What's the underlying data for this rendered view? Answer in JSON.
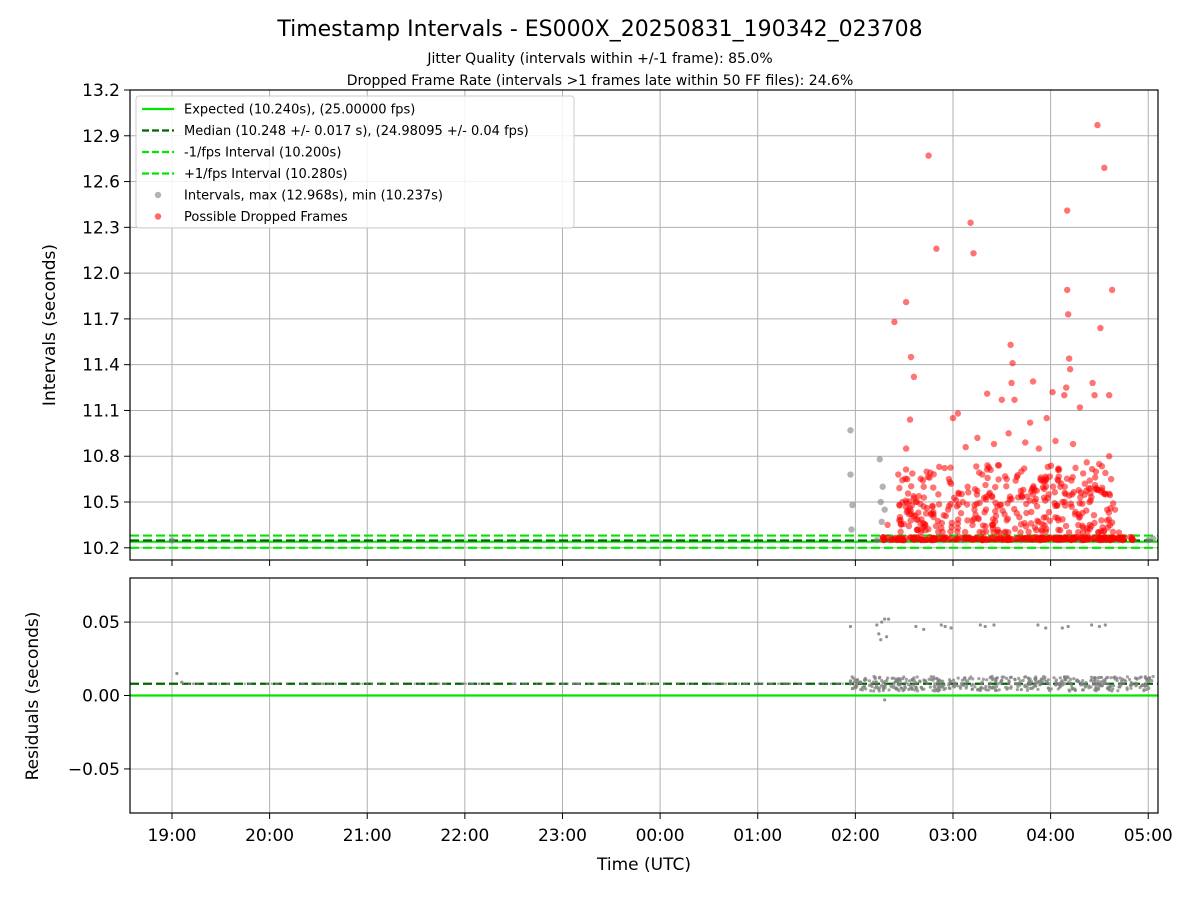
{
  "chart_data": [
    {
      "type": "scatter",
      "panel": "intervals",
      "title": "Timestamp Intervals - ES000X_20250831_190342_023708",
      "subtitle_lines": [
        "Jitter Quality (intervals within +/-1 frame): 85.0%",
        "Dropped Frame Rate (intervals >1 frames late within 50 FF files): 24.6%"
      ],
      "ylabel": "Intervals (seconds)",
      "xlabel": "",
      "ylim": [
        10.12,
        13.2
      ],
      "yticks": [
        10.2,
        10.5,
        10.8,
        11.1,
        11.4,
        11.7,
        12.0,
        12.3,
        12.6,
        12.9,
        13.2
      ],
      "ytick_labels": [
        "10.2",
        "10.5",
        "10.8",
        "11.1",
        "11.4",
        "11.7",
        "12.0",
        "12.3",
        "12.6",
        "12.9",
        "13.2"
      ],
      "x_unit": "hours since 00:00 UTC (negative = previous day)",
      "xlim": [
        -5.43,
        5.1
      ],
      "grid": true,
      "legend_position": "upper-left",
      "reference_lines": [
        {
          "name": "Expected (10.240s), (25.00000 fps)",
          "y": 10.24,
          "style": "solid",
          "color": "#00e600"
        },
        {
          "name": "Median (10.248 +/- 0.017 s), (24.98095 +/- 0.04 fps)",
          "y": 10.248,
          "style": "dashed",
          "color": "#006400"
        },
        {
          "name": "-1/fps Interval (10.200s)",
          "y": 10.2,
          "style": "dashed",
          "color": "#00e600"
        },
        {
          "name": "+1/fps Interval (10.280s)",
          "y": 10.28,
          "style": "dashed",
          "color": "#00e600"
        }
      ],
      "series": [
        {
          "name": "Intervals, max (12.968s), min (10.237s)",
          "color": "#808080",
          "points": [
            [
              -5.0,
              10.248
            ],
            [
              1.95,
              10.97
            ],
            [
              1.95,
              10.68
            ],
            [
              1.97,
              10.48
            ],
            [
              1.96,
              10.32
            ],
            [
              2.25,
              10.78
            ],
            [
              2.26,
              10.5
            ],
            [
              2.27,
              10.37
            ],
            [
              2.28,
              10.6
            ],
            [
              2.3,
              10.45
            ],
            [
              2.22,
              10.25
            ],
            [
              2.35,
              10.25
            ],
            [
              2.5,
              10.25
            ],
            [
              2.7,
              10.25
            ],
            [
              2.9,
              10.25
            ],
            [
              3.1,
              10.25
            ],
            [
              3.3,
              10.25
            ],
            [
              3.5,
              10.25
            ],
            [
              3.7,
              10.25
            ],
            [
              3.9,
              10.25
            ],
            [
              4.1,
              10.25
            ],
            [
              4.3,
              10.25
            ],
            [
              4.5,
              10.25
            ],
            [
              4.7,
              10.25
            ],
            [
              4.85,
              10.25
            ],
            [
              5.0,
              10.25
            ],
            [
              5.05,
              10.26
            ]
          ]
        },
        {
          "name": "Possible Dropped Frames",
          "color": "#ff0000",
          "points": [
            [
              2.75,
              12.77
            ],
            [
              2.83,
              12.16
            ],
            [
              3.18,
              12.33
            ],
            [
              3.21,
              12.13
            ],
            [
              4.48,
              12.97
            ],
            [
              4.55,
              12.69
            ],
            [
              4.17,
              12.41
            ],
            [
              4.17,
              11.89
            ],
            [
              4.63,
              11.89
            ],
            [
              4.18,
              11.73
            ],
            [
              4.51,
              11.64
            ],
            [
              2.52,
              11.81
            ],
            [
              2.4,
              11.68
            ],
            [
              2.57,
              11.45
            ],
            [
              2.6,
              11.32
            ],
            [
              2.56,
              11.04
            ],
            [
              2.52,
              10.85
            ],
            [
              2.44,
              10.68
            ],
            [
              3.59,
              11.53
            ],
            [
              3.61,
              11.41
            ],
            [
              3.6,
              11.28
            ],
            [
              4.19,
              11.44
            ],
            [
              4.2,
              11.37
            ],
            [
              4.16,
              11.25
            ],
            [
              4.14,
              11.2
            ],
            [
              3.0,
              11.05
            ],
            [
              3.05,
              11.08
            ],
            [
              3.35,
              11.21
            ],
            [
              3.82,
              11.29
            ],
            [
              3.5,
              11.17
            ],
            [
              3.63,
              11.17
            ],
            [
              4.43,
              11.28
            ],
            [
              4.45,
              11.2
            ],
            [
              4.6,
              11.2
            ],
            [
              4.02,
              11.22
            ],
            [
              3.96,
              11.05
            ],
            [
              4.3,
              11.12
            ],
            [
              3.79,
              11.02
            ],
            [
              3.57,
              10.95
            ],
            [
              3.74,
              10.89
            ],
            [
              3.25,
              10.92
            ],
            [
              3.13,
              10.86
            ],
            [
              3.42,
              10.88
            ],
            [
              3.88,
              10.85
            ],
            [
              4.05,
              10.9
            ],
            [
              4.23,
              10.88
            ],
            [
              4.6,
              10.8
            ],
            [
              4.62,
              10.65
            ],
            [
              4.56,
              10.55
            ],
            [
              4.37,
              10.76
            ],
            [
              4.08,
              10.72
            ],
            [
              3.9,
              10.66
            ],
            [
              3.7,
              10.7
            ],
            [
              3.55,
              10.65
            ],
            [
              3.3,
              10.68
            ],
            [
              3.15,
              10.6
            ],
            [
              2.98,
              10.62
            ],
            [
              2.85,
              10.55
            ],
            [
              2.7,
              10.6
            ],
            [
              2.62,
              10.5
            ],
            [
              2.55,
              10.42
            ],
            [
              2.45,
              10.38
            ],
            [
              2.33,
              10.35
            ],
            [
              2.8,
              10.42
            ],
            [
              2.95,
              10.45
            ],
            [
              3.1,
              10.5
            ],
            [
              3.22,
              10.45
            ],
            [
              3.37,
              10.55
            ],
            [
              3.48,
              10.48
            ],
            [
              3.6,
              10.52
            ],
            [
              3.72,
              10.58
            ],
            [
              3.85,
              10.52
            ],
            [
              3.98,
              10.55
            ],
            [
              4.1,
              10.6
            ],
            [
              4.22,
              10.55
            ],
            [
              4.35,
              10.62
            ],
            [
              4.48,
              10.58
            ],
            [
              4.58,
              10.45
            ],
            [
              4.66,
              10.45
            ],
            [
              4.7,
              10.3
            ],
            [
              2.68,
              10.32
            ],
            [
              2.88,
              10.33
            ],
            [
              3.05,
              10.36
            ],
            [
              3.2,
              10.38
            ],
            [
              3.4,
              10.35
            ],
            [
              3.55,
              10.38
            ],
            [
              3.68,
              10.4
            ],
            [
              3.8,
              10.36
            ],
            [
              3.95,
              10.4
            ],
            [
              4.08,
              10.38
            ],
            [
              4.25,
              10.42
            ],
            [
              4.4,
              10.35
            ],
            [
              4.52,
              10.38
            ]
          ],
          "band": {
            "x_range": [
              2.28,
              4.85
            ],
            "y": 10.26,
            "note": "dense row of points just above +1/fps"
          }
        }
      ]
    },
    {
      "type": "scatter",
      "panel": "residuals",
      "ylabel": "Residuals (seconds)",
      "xlabel": "Time (UTC)",
      "ylim": [
        -0.08,
        0.08
      ],
      "yticks": [
        -0.05,
        0.0,
        0.05
      ],
      "ytick_labels": [
        "−0.05",
        "0.00",
        "0.05"
      ],
      "xticks": [
        -5,
        -4,
        -3,
        -2,
        -1,
        0,
        1,
        2,
        3,
        4,
        5
      ],
      "xtick_labels": [
        "19:00",
        "20:00",
        "21:00",
        "22:00",
        "23:00",
        "00:00",
        "01:00",
        "02:00",
        "03:00",
        "04:00",
        "05:00"
      ],
      "xlim": [
        -5.43,
        5.1
      ],
      "grid": true,
      "reference_lines": [
        {
          "name": "Median",
          "y": 0.008,
          "style": "dashed",
          "color": "#006400"
        },
        {
          "name": "Expected",
          "y": 0.0,
          "style": "solid",
          "color": "#00e600"
        }
      ],
      "series": [
        {
          "name": "Residuals",
          "color": "#808080",
          "points": [
            [
              -4.95,
              0.015
            ],
            [
              -4.9,
              0.009
            ],
            [
              1.95,
              0.047
            ],
            [
              2.22,
              0.048
            ],
            [
              2.24,
              0.042
            ],
            [
              2.27,
              0.05
            ],
            [
              2.3,
              0.052
            ],
            [
              2.34,
              0.052
            ],
            [
              2.26,
              0.038
            ],
            [
              2.32,
              0.04
            ],
            [
              2.62,
              0.047
            ],
            [
              2.7,
              0.045
            ],
            [
              2.88,
              0.048
            ],
            [
              2.92,
              0.047
            ],
            [
              2.98,
              0.046
            ],
            [
              3.28,
              0.048
            ],
            [
              3.33,
              0.047
            ],
            [
              3.42,
              0.048
            ],
            [
              3.87,
              0.048
            ],
            [
              3.95,
              0.046
            ],
            [
              4.12,
              0.046
            ],
            [
              4.18,
              0.047
            ],
            [
              4.42,
              0.048
            ],
            [
              4.5,
              0.047
            ],
            [
              4.56,
              0.048
            ],
            [
              2.3,
              -0.003
            ],
            [
              2.5,
              0.004
            ],
            [
              3.4,
              0.005
            ],
            [
              3.7,
              0.004
            ],
            [
              4.6,
              0.005
            ],
            [
              1.95,
              0.01
            ],
            [
              2.0,
              0.006
            ]
          ],
          "band": {
            "x_range": [
              1.95,
              5.05
            ],
            "y": 0.008,
            "note": "dense band near the median"
          },
          "sparse_band": {
            "x_range": [
              -4.9,
              1.95
            ],
            "y": 0.008,
            "note": "tiny points along the median line"
          }
        }
      ]
    }
  ],
  "legend": [
    {
      "label": "Expected (10.240s), (25.00000 fps)",
      "marker": "line",
      "color": "#00e600",
      "dash": false
    },
    {
      "label": "Median (10.248 +/- 0.017 s), (24.98095 +/- 0.04 fps)",
      "marker": "line",
      "color": "#006400",
      "dash": true
    },
    {
      "label": "-1/fps Interval (10.200s)",
      "marker": "line",
      "color": "#00e600",
      "dash": true
    },
    {
      "label": "+1/fps Interval (10.280s)",
      "marker": "line",
      "color": "#00e600",
      "dash": true
    },
    {
      "label": "Intervals, max (12.968s), min (10.237s)",
      "marker": "dot",
      "color": "#808080"
    },
    {
      "label": "Possible Dropped Frames",
      "marker": "dot",
      "color": "#ff0000"
    }
  ]
}
